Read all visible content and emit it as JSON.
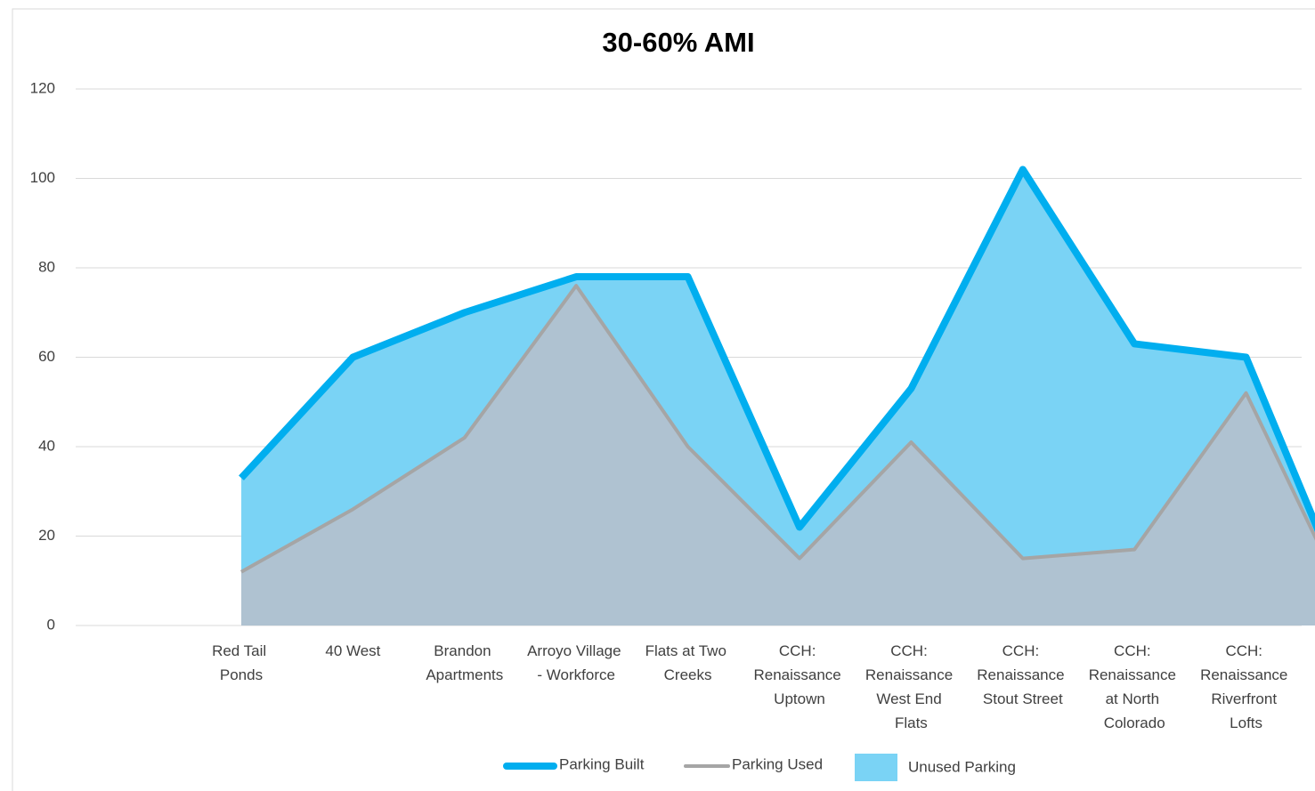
{
  "chart_data": {
    "type": "area",
    "title": "30-60% AMI",
    "categories": [
      "Red Tail\nPonds",
      "40 West",
      "Brandon\nApartments",
      "Arroyo Village\n- Workforce",
      "Flats at Two\nCreeks",
      "CCH:\nRenaissance\nUptown",
      "CCH:\nRenaissance\nWest End\nFlats",
      "CCH:\nRenaissance\nStout Street",
      "CCH:\nRenaissance\nat North\nColorado",
      "CCH:\nRenaissance\nRiverfront\nLofts",
      null
    ],
    "series": [
      {
        "name": "Parking Built",
        "color": "#00aeef",
        "kind": "line",
        "values": [
          33,
          60,
          70,
          78,
          78,
          22,
          53,
          102,
          63,
          60,
          0
        ]
      },
      {
        "name": "Parking Used",
        "color": "#a5a5a5",
        "kind": "line",
        "area_color": "#afc2d1",
        "values": [
          12,
          26,
          42,
          76,
          40,
          15,
          41,
          15,
          17,
          52,
          0
        ]
      },
      {
        "name": "Unused Parking",
        "color": "#7ad3f5",
        "kind": "stacked-area",
        "values": [
          21,
          34,
          28,
          2,
          38,
          7,
          12,
          87,
          46,
          8,
          0
        ]
      }
    ],
    "ylim": [
      0,
      120
    ],
    "yticks": [
      0,
      20,
      40,
      60,
      80,
      100,
      120
    ],
    "grid": true
  }
}
